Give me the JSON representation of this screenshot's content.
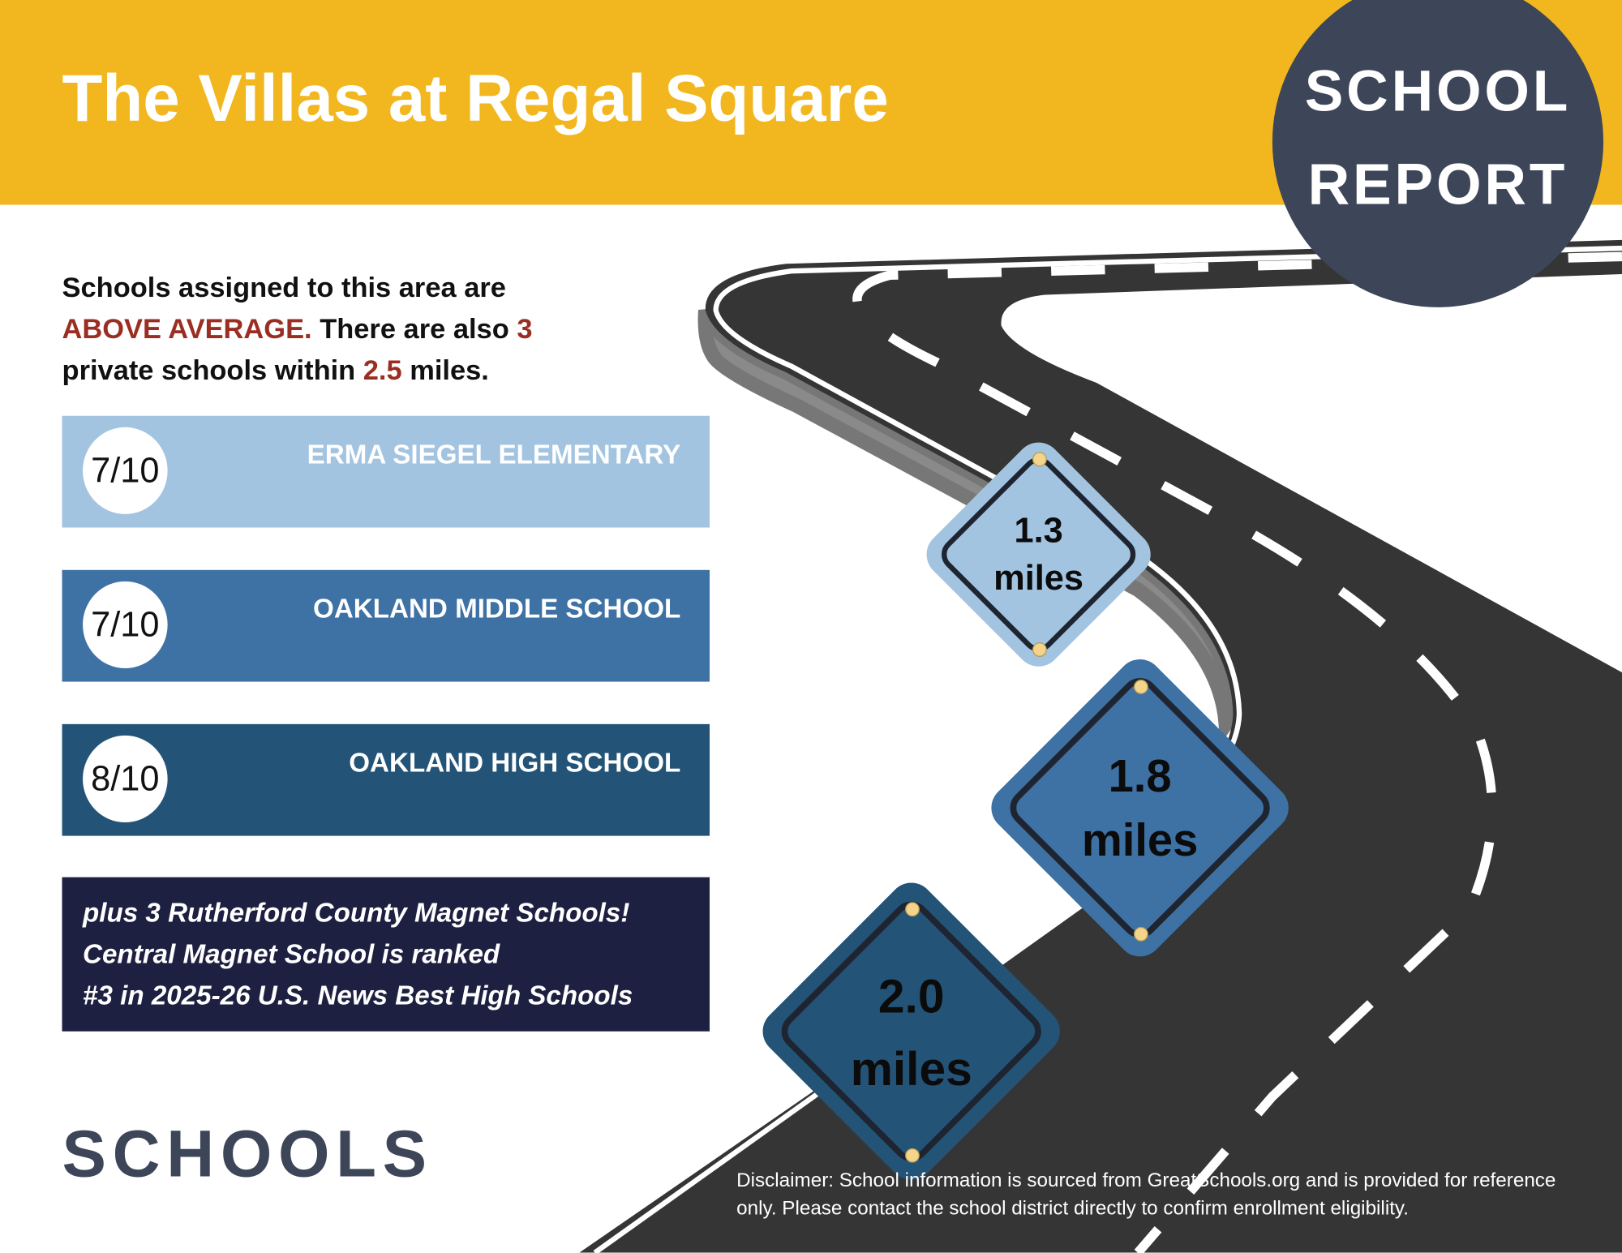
{
  "header": {
    "title": "The Villas at Regal Square",
    "badge_line1": "SCHOOL",
    "badge_line2": "REPORT"
  },
  "intro": {
    "text1": "Schools assigned to this area are",
    "rating_phrase": "ABOVE AVERAGE.",
    "text2": " There are also ",
    "private_count": "3",
    "text3": "private schools within ",
    "distance": "2.5",
    "text4": " miles."
  },
  "schools": [
    {
      "score": "7/10",
      "name": "ERMA SIEGEL ELEMENTARY",
      "distance": "1.3",
      "unit": "miles",
      "color": "#A3C4E0"
    },
    {
      "score": "7/10",
      "name": "OAKLAND MIDDLE SCHOOL",
      "distance": "1.8",
      "unit": "miles",
      "color": "#3E71A4"
    },
    {
      "score": "8/10",
      "name": "OAKLAND HIGH SCHOOL",
      "distance": "2.0",
      "unit": "miles",
      "color": "#235377"
    }
  ],
  "magnet": {
    "line1": "plus 3 Rutherford County Magnet Schools!",
    "line2": "Central Magnet School is ranked",
    "line3": "#3 in 2025-26 U.S. News Best High Schools"
  },
  "section_title": "SCHOOLS",
  "disclaimer": "Disclaimer: School information is sourced from GreatSchools.org and is provided for reference only. Please contact the school district directly to confirm enrollment eligibility.",
  "colors": {
    "header": "#F2B71E",
    "badge": "#3D4558",
    "accent_red": "#9B2E22",
    "magnet_box": "#1D2040",
    "road": "#333333"
  }
}
